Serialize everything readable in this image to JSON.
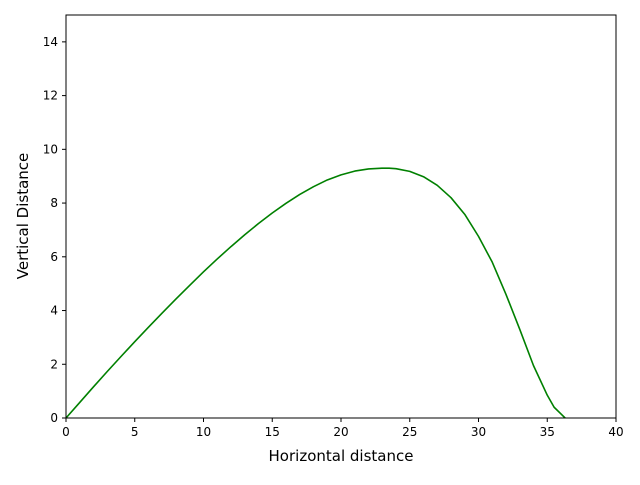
{
  "chart_data": {
    "type": "line",
    "title": "",
    "xlabel": "Horizontal distance",
    "ylabel": "Vertical Distance",
    "xlim": [
      0,
      40
    ],
    "ylim": [
      0,
      15
    ],
    "xticks": [
      0,
      5,
      10,
      15,
      20,
      25,
      30,
      35,
      40
    ],
    "yticks": [
      0,
      2,
      4,
      6,
      8,
      10,
      12,
      14
    ],
    "grid": false,
    "legend": "none",
    "series": [
      {
        "color": "#008000",
        "x": [
          0,
          1,
          2,
          3,
          4,
          5,
          6,
          7,
          8,
          9,
          10,
          11,
          12,
          13,
          14,
          15,
          16,
          17,
          18,
          19,
          20,
          21,
          22,
          23,
          23.5,
          24,
          25,
          26,
          27,
          28,
          29,
          30,
          31,
          32,
          33,
          34,
          35,
          35.5,
          36,
          36.3
        ],
        "y": [
          0,
          0.58,
          1.16,
          1.73,
          2.29,
          2.84,
          3.38,
          3.91,
          4.43,
          4.94,
          5.44,
          5.92,
          6.38,
          6.82,
          7.24,
          7.63,
          7.99,
          8.32,
          8.61,
          8.86,
          9.05,
          9.19,
          9.27,
          9.3,
          9.3,
          9.28,
          9.18,
          8.98,
          8.66,
          8.2,
          7.58,
          6.76,
          5.8,
          4.6,
          3.3,
          1.95,
          0.85,
          0.4,
          0.15,
          0
        ]
      }
    ]
  }
}
